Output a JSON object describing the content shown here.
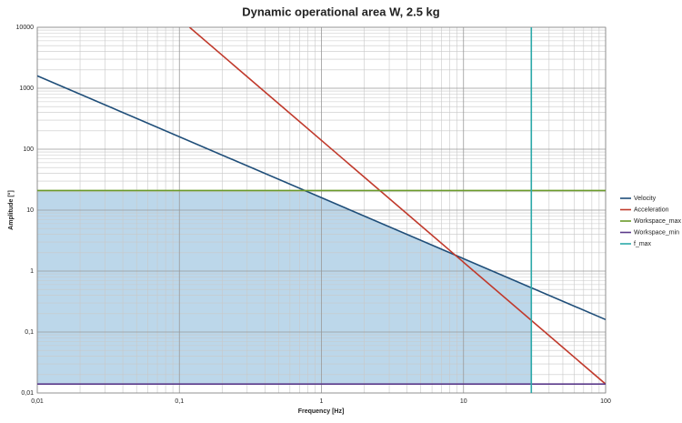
{
  "chart_data": {
    "type": "line",
    "title": "Dynamic operational area W, 2.5 kg",
    "xlabel": "Frequency [Hz]",
    "ylabel": "Amplitude [°]",
    "xscale": "log",
    "yscale": "log",
    "grid": true,
    "legend": "right",
    "area_color": "#bcd7ea",
    "xlim": [
      0.01,
      100
    ],
    "ylim": [
      0.01,
      10000
    ],
    "xticks": [
      {
        "value": 0.01,
        "label": "0,01"
      },
      {
        "value": 0.1,
        "label": "0,1"
      },
      1,
      10,
      100
    ],
    "yticks": [
      {
        "value": 0.01,
        "label": "0,01"
      },
      {
        "value": 0.1,
        "label": "0,1"
      },
      1,
      10,
      100,
      1000,
      10000
    ],
    "series": [
      {
        "name": "Velocity",
        "color": "#1f4e79",
        "x": [
          0.01,
          100
        ],
        "values": [
          1600,
          0.16
        ]
      },
      {
        "name": "Acceleration",
        "color": "#c0392b",
        "x": [
          0.118,
          100
        ],
        "values": [
          10000,
          0.014
        ]
      },
      {
        "name": "Workspace_max",
        "color": "#6a9a2a",
        "x": [
          0.01,
          100
        ],
        "values": [
          21,
          21
        ]
      },
      {
        "name": "Workspace_min",
        "color": "#5b3a8a",
        "x": [
          0.01,
          100
        ],
        "values": [
          0.014,
          0.014
        ]
      },
      {
        "name": "f_max",
        "color": "#2aa8a8",
        "x": [
          30,
          30
        ],
        "values": [
          0.01,
          10000
        ]
      }
    ]
  }
}
